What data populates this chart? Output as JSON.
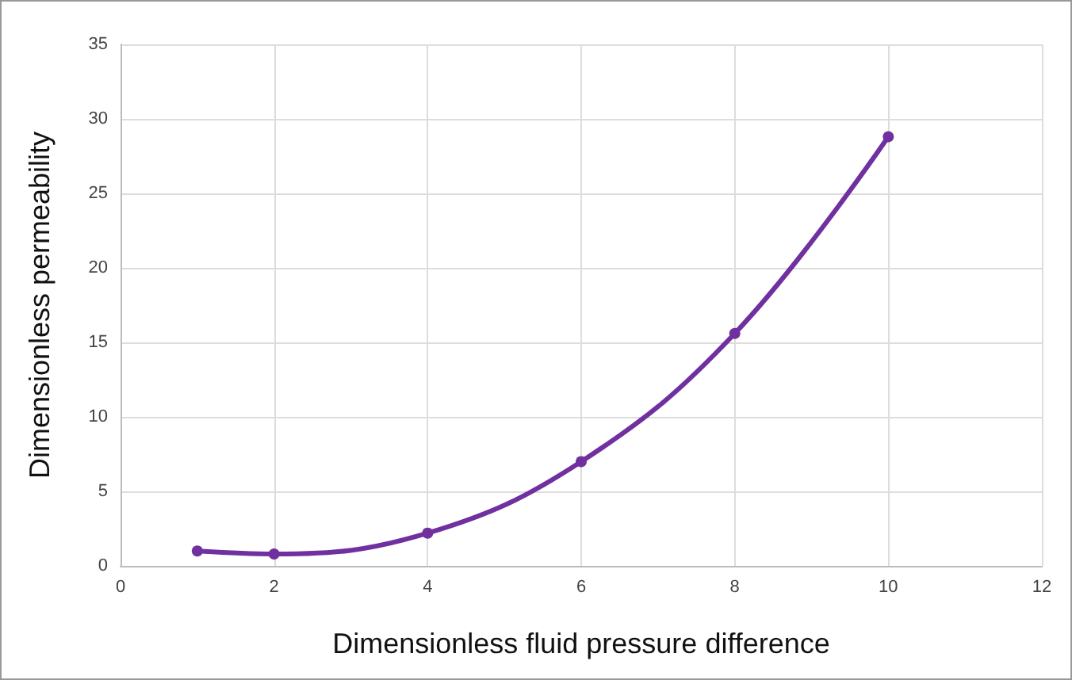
{
  "chart_data": {
    "type": "line",
    "xlabel": "Dimensionless fluid pressure difference",
    "ylabel": "Dimensionless permeability",
    "x": [
      1,
      2,
      4,
      6,
      8,
      10
    ],
    "series": [
      {
        "color": "#7030a0",
        "values": [
          1.0,
          0.8,
          2.2,
          7.0,
          15.6,
          28.8
        ]
      }
    ],
    "xlim": [
      0,
      12
    ],
    "xticks": [
      0,
      2,
      4,
      6,
      8,
      10,
      12
    ],
    "ylim": [
      0,
      35
    ],
    "yticks": [
      0,
      5,
      10,
      15,
      20,
      25,
      30,
      35
    ],
    "grid": true,
    "marker": "circle",
    "line_style": "solid"
  }
}
